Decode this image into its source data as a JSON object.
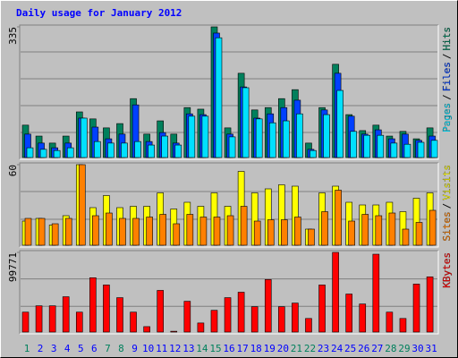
{
  "chart_data": {
    "title": "Daily usage for January 2012",
    "categories": [
      "1",
      "2",
      "3",
      "4",
      "5",
      "6",
      "7",
      "8",
      "9",
      "10",
      "11",
      "12",
      "13",
      "14",
      "15",
      "16",
      "17",
      "18",
      "19",
      "20",
      "21",
      "22",
      "23",
      "24",
      "25",
      "26",
      "27",
      "28",
      "29",
      "30",
      "31"
    ],
    "highlighted_categories": [
      "1",
      "7",
      "8",
      "14",
      "15",
      "21",
      "22",
      "28",
      "29"
    ],
    "highlight_color": "#00805c",
    "category_color": "#0000ff",
    "legend_separator": "/",
    "panels": [
      {
        "type": "bar",
        "ylim": [
          0,
          335
        ],
        "yticks": [
          335
        ],
        "series": [
          {
            "name": "Hits",
            "color": "#00805c",
            "values": [
              83,
              55,
              37,
              55,
              117,
              99,
              76,
              87,
              151,
              60,
              94,
              60,
              128,
              124,
              335,
              76,
              216,
              122,
              128,
              151,
              174,
              37,
              128,
              239,
              110,
              69,
              83,
              55,
              67,
              48,
              76
            ]
          },
          {
            "name": "Files",
            "color": "#0040ff",
            "values": [
              60,
              37,
              25,
              37,
              101,
              78,
              48,
              60,
              135,
              41,
              64,
              37,
              112,
              110,
              319,
              60,
              181,
              101,
              112,
              128,
              147,
              21,
              122,
              216,
              106,
              60,
              71,
              48,
              60,
              44,
              55
            ]
          },
          {
            "name": "Pages",
            "color": "#00e0ff",
            "values": [
              25,
              21,
              18,
              25,
              101,
              41,
              37,
              37,
              41,
              32,
              55,
              32,
              106,
              106,
              307,
              53,
              179,
              99,
              89,
              94,
              112,
              18,
              110,
              172,
              67,
              57,
              57,
              37,
              34,
              39,
              44
            ]
          }
        ]
      },
      {
        "type": "bar",
        "ylim": [
          0,
          60
        ],
        "yticks": [
          60
        ],
        "series": [
          {
            "name": "Visits",
            "color": "#ffff00",
            "values": [
              18,
              20,
              15,
              22,
              60,
              28,
              37,
              28,
              29,
              29,
              39,
              27,
              32,
              29,
              39,
              29,
              55,
              39,
              42,
              45,
              44,
              12,
              39,
              44,
              32,
              30,
              30,
              32,
              25,
              35,
              39
            ]
          },
          {
            "name": "Sites",
            "color": "#ff8000",
            "values": [
              20,
              20,
              16,
              20,
              60,
              22,
              24,
              20,
              20,
              21,
              23,
              16,
              23,
              21,
              21,
              22,
              29,
              18,
              19,
              19,
              21,
              12,
              25,
              41,
              18,
              23,
              22,
              24,
              12,
              17,
              26
            ]
          }
        ]
      },
      {
        "type": "bar",
        "ylim": [
          0,
          99771
        ],
        "yticks": [
          99771
        ],
        "series": [
          {
            "name": "KBytes",
            "color": "#ff0000",
            "values": [
              24950,
              32890,
              32890,
              44230,
              24950,
              68040,
              58970,
              43090,
              24950,
              6800,
              52170,
              1000,
              38560,
              11340,
              27220,
              43090,
              49900,
              31750,
              65770,
              31750,
              36290,
              17010,
              58970,
              99771,
              47630,
              35150,
              97500,
              24950,
              17010,
              60100,
              69170
            ]
          }
        ]
      }
    ]
  }
}
